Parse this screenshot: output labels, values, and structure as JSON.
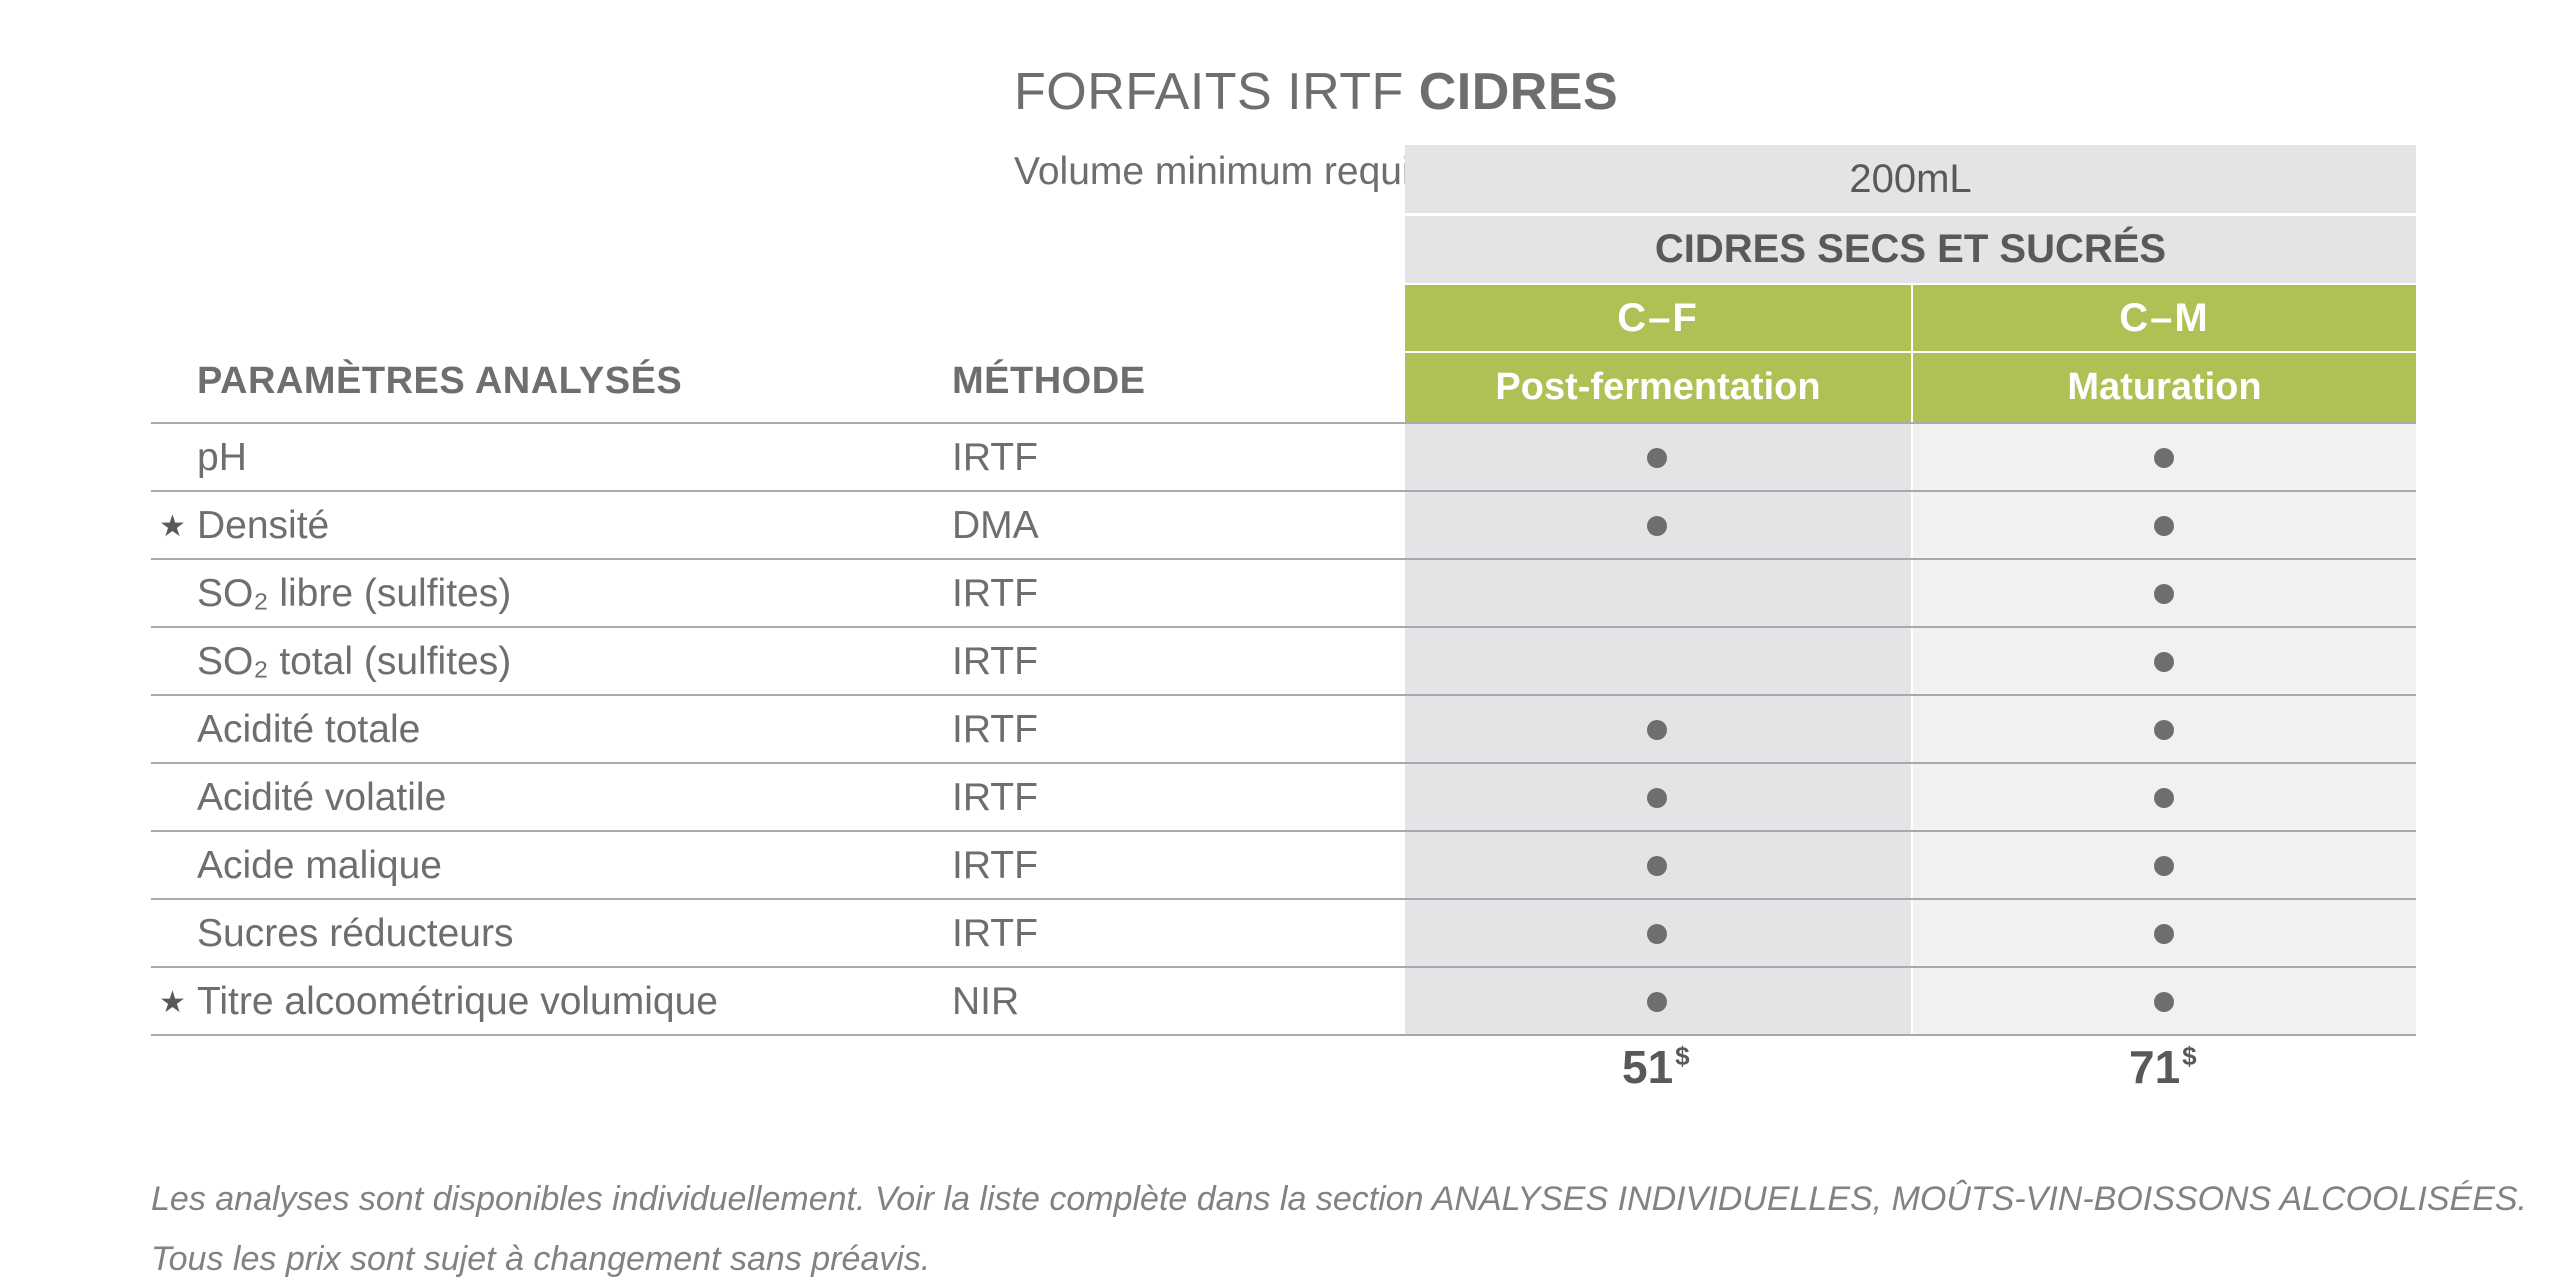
{
  "title": {
    "light": "FORFAITS IRTF",
    "bold": "CIDRES"
  },
  "volume": {
    "label": "Volume minimum requis",
    "value": "200mL"
  },
  "category": "CIDRES SECS ET SUCRÉS",
  "columns": {
    "param_header": "PARAMÈTRES ANALYSÉS",
    "method_header": "MÉTHODE",
    "packages": [
      {
        "code": "C–F",
        "name": "Post-fermentation",
        "price": "51",
        "currency": "$"
      },
      {
        "code": "C–M",
        "name": "Maturation",
        "price": "71",
        "currency": "$"
      }
    ]
  },
  "rows": [
    {
      "star": "",
      "param": "pH",
      "method": "IRTF",
      "cf": true,
      "cm": true
    },
    {
      "star": "★",
      "param": "Densité",
      "method": "DMA",
      "cf": true,
      "cm": true
    },
    {
      "star": "",
      "param": "SO₂ libre (sulfites)",
      "method": "IRTF",
      "cf": false,
      "cm": true
    },
    {
      "star": "",
      "param": "SO₂ total (sulfites)",
      "method": "IRTF",
      "cf": false,
      "cm": true
    },
    {
      "star": "",
      "param": "Acidité totale",
      "method": "IRTF",
      "cf": true,
      "cm": true
    },
    {
      "star": "",
      "param": "Acidité volatile",
      "method": "IRTF",
      "cf": true,
      "cm": true
    },
    {
      "star": "",
      "param": "Acide malique",
      "method": "IRTF",
      "cf": true,
      "cm": true
    },
    {
      "star": "",
      "param": "Sucres réducteurs",
      "method": "IRTF",
      "cf": true,
      "cm": true
    },
    {
      "star": "★",
      "param": "Titre alcoométrique volumique",
      "method": "NIR",
      "cf": true,
      "cm": true
    }
  ],
  "notes": [
    "Les analyses sont disponibles individuellement. Voir la liste complète dans la section ANALYSES INDIVIDUELLES, MOÛTS-VIN-BOISSONS ALCOOLISÉES.",
    "Tous les prix sont sujet à changement sans préavis."
  ],
  "colors": {
    "green": "#adc155",
    "grey_header": "#e3e4e5",
    "col1_bg": "#e3e4e5",
    "col2_bg": "#f1f1f2",
    "text": "#6d6e70"
  }
}
